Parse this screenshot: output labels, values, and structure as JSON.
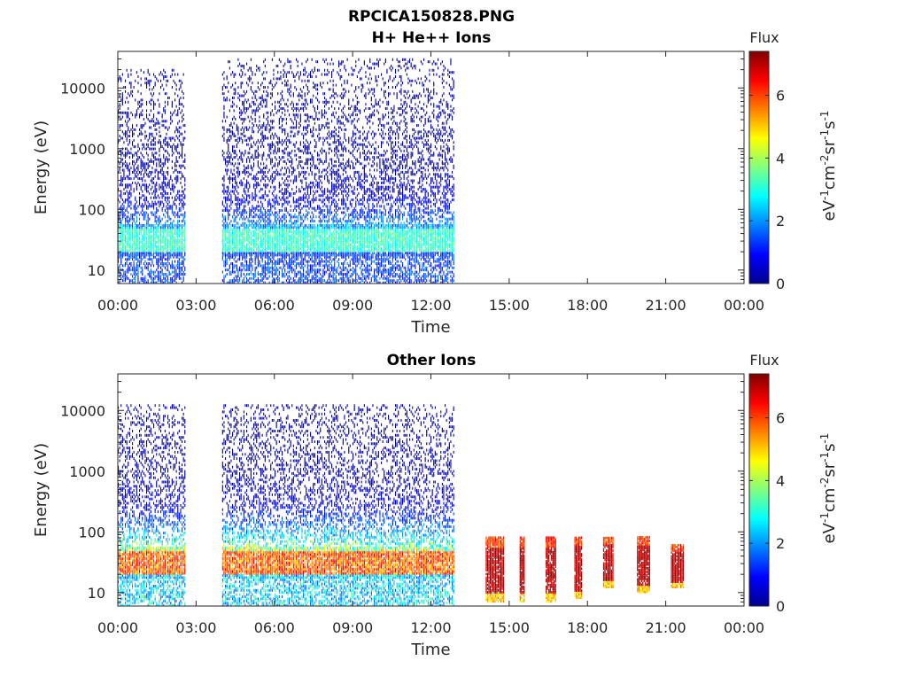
{
  "figure": {
    "title_line1": "RPCICA150828.PNG",
    "title_line2": "H+ He++ Ions"
  },
  "colors": {
    "colormap": [
      "#00008f",
      "#0000ff",
      "#0080ff",
      "#00ffff",
      "#80ff80",
      "#ffff00",
      "#ff8000",
      "#ff0000",
      "#800000"
    ]
  },
  "chart_data": [
    {
      "type": "heatmap",
      "title": "H+ He++ Ions",
      "xlabel": "Time",
      "ylabel": "Energy (eV)",
      "x_ticks": [
        "00:00",
        "03:00",
        "06:00",
        "09:00",
        "12:00",
        "15:00",
        "18:00",
        "21:00",
        "00:00"
      ],
      "x_range_hours": [
        0,
        24
      ],
      "y_scale": "log",
      "y_ticks": [
        "10",
        "100",
        "1000",
        "10000"
      ],
      "y_range_eV": [
        6,
        40000
      ],
      "colorbar": {
        "label": "Flux",
        "units": "eV-1cm-2sr-1s-1",
        "ticks": [
          "0",
          "2",
          "4",
          "6"
        ],
        "range": [
          0,
          7.4
        ]
      },
      "data_segments": [
        {
          "start_hour": 0.0,
          "end_hour": 2.6,
          "peak_energy_eV": 30,
          "peak_flux": 3.5,
          "top_energy_eV": 20000
        },
        {
          "start_hour": 4.0,
          "end_hour": 12.9,
          "peak_energy_eV": 30,
          "peak_flux": 3.5,
          "top_energy_eV": 30000
        }
      ]
    },
    {
      "type": "heatmap",
      "title": "Other Ions",
      "xlabel": "Time",
      "ylabel": "Energy (eV)",
      "x_ticks": [
        "00:00",
        "03:00",
        "06:00",
        "09:00",
        "12:00",
        "15:00",
        "18:00",
        "21:00",
        "00:00"
      ],
      "x_range_hours": [
        0,
        24
      ],
      "y_scale": "log",
      "y_ticks": [
        "10",
        "100",
        "1000",
        "10000"
      ],
      "y_range_eV": [
        6,
        40000
      ],
      "colorbar": {
        "label": "Flux",
        "units": "eV-1cm-2sr-1s-1",
        "ticks": [
          "0",
          "2",
          "4",
          "6"
        ],
        "range": [
          0,
          7.4
        ]
      },
      "data_segments": [
        {
          "start_hour": 0.0,
          "end_hour": 2.6,
          "peak_energy_eV": 30,
          "peak_flux": 6.5,
          "top_energy_eV": 12000
        },
        {
          "start_hour": 4.0,
          "end_hour": 12.9,
          "peak_energy_eV": 30,
          "peak_flux": 6.5,
          "top_energy_eV": 12000
        }
      ],
      "bursts": [
        {
          "start_hour": 14.1,
          "end_hour": 14.8,
          "low_eV": 7,
          "high_eV": 80
        },
        {
          "start_hour": 15.4,
          "end_hour": 15.6,
          "low_eV": 7,
          "high_eV": 80
        },
        {
          "start_hour": 16.4,
          "end_hour": 16.8,
          "low_eV": 7,
          "high_eV": 80
        },
        {
          "start_hour": 17.5,
          "end_hour": 17.8,
          "low_eV": 8,
          "high_eV": 80
        },
        {
          "start_hour": 18.6,
          "end_hour": 19.0,
          "low_eV": 12,
          "high_eV": 80
        },
        {
          "start_hour": 19.9,
          "end_hour": 20.4,
          "low_eV": 10,
          "high_eV": 80
        },
        {
          "start_hour": 21.2,
          "end_hour": 21.7,
          "low_eV": 12,
          "high_eV": 60
        }
      ]
    }
  ]
}
